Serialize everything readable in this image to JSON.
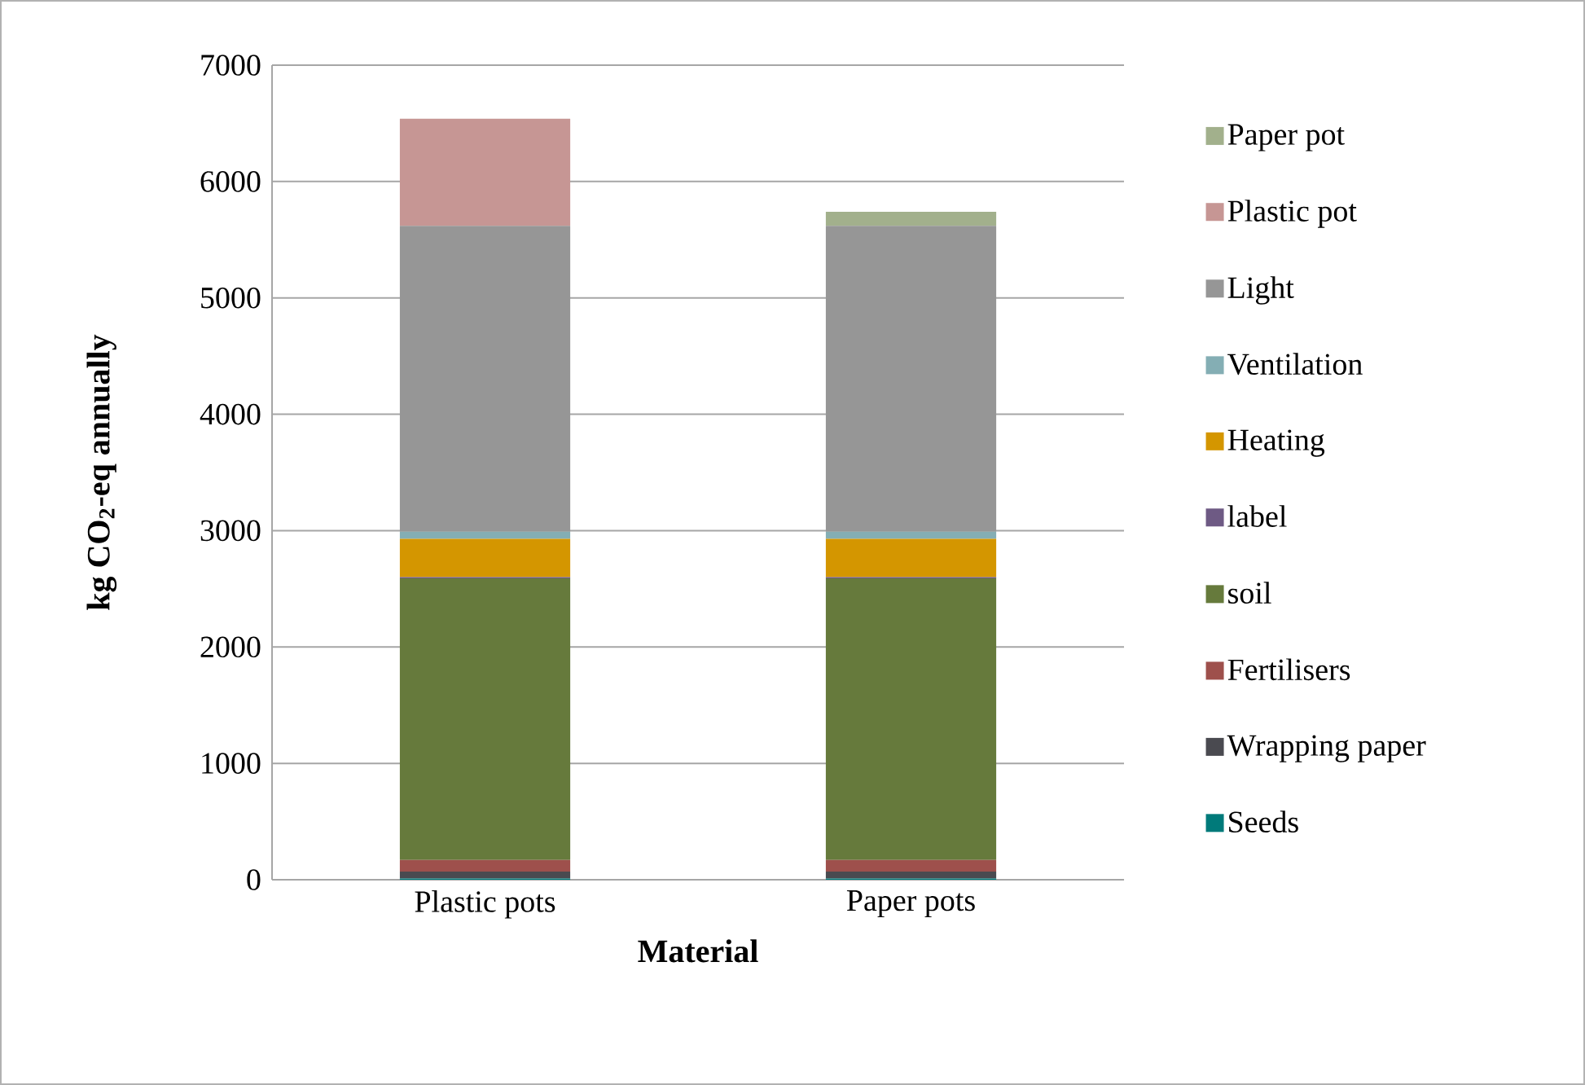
{
  "chart_data": {
    "type": "bar",
    "stacked": true,
    "xlabel": "Material",
    "ylabel": "kg CO$_{2}$-eq annually",
    "categories": [
      "Plastic pots",
      "Paper pots"
    ],
    "series": [
      {
        "name": "Seeds",
        "color": "#007a7a",
        "values": [
          10,
          10
        ]
      },
      {
        "name": "Wrapping paper",
        "color": "#4a4a50",
        "values": [
          60,
          60
        ]
      },
      {
        "name": "Fertilisers",
        "color": "#9e504c",
        "values": [
          100,
          100
        ]
      },
      {
        "name": "soil",
        "color": "#667a3c",
        "values": [
          2420,
          2420
        ]
      },
      {
        "name": "label",
        "color": "#6e5a84",
        "values": [
          10,
          10
        ]
      },
      {
        "name": "Heating",
        "color": "#d49600",
        "values": [
          330,
          330
        ]
      },
      {
        "name": "Ventilation",
        "color": "#84aeb4",
        "values": [
          60,
          60
        ]
      },
      {
        "name": "Light",
        "color": "#969696",
        "values": [
          2630,
          2630
        ]
      },
      {
        "name": "Plastic pot",
        "color": "#c69694",
        "values": [
          920,
          0
        ]
      },
      {
        "name": "Paper pot",
        "color": "#a2b08c",
        "values": [
          0,
          120
        ]
      }
    ],
    "ylim": [
      0,
      7000
    ],
    "yticks": [
      0,
      1000,
      2000,
      3000,
      4000,
      5000,
      6000,
      7000
    ],
    "grid": "y",
    "legend": "right"
  }
}
